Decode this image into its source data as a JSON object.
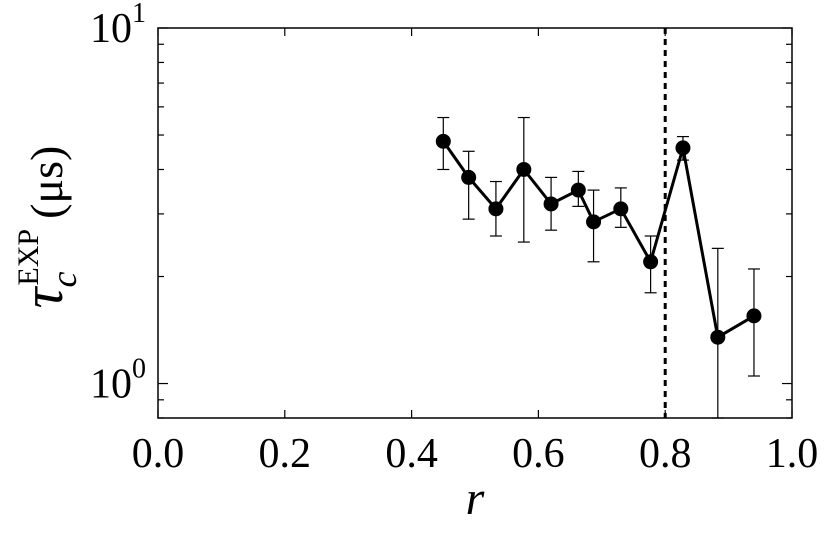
{
  "chart_data": {
    "type": "line",
    "xlabel": "r",
    "ylabel": {
      "symbol": "τ",
      "subscript": "c",
      "superscript": "EXP",
      "unit": "(μs)"
    },
    "xlim": [
      0.0,
      1.0
    ],
    "ylim": [
      0.8,
      10
    ],
    "yscale": "log",
    "grid": false,
    "x_tick_labels": [
      "0.0",
      "0.2",
      "0.4",
      "0.6",
      "0.8",
      "1.0"
    ],
    "x_ticks": [
      0.0,
      0.2,
      0.4,
      0.6,
      0.8,
      1.0
    ],
    "y_tick_labels": [
      {
        "value": 1,
        "base": "10",
        "exp": "0"
      },
      {
        "value": 10,
        "base": "10",
        "exp": "1"
      }
    ],
    "series": [
      {
        "x": [
          0.45,
          0.49,
          0.533,
          0.577,
          0.62,
          0.663,
          0.687,
          0.73,
          0.777,
          0.828,
          0.883,
          0.94
        ],
        "y": [
          4.8,
          3.8,
          3.1,
          4.0,
          3.2,
          3.5,
          2.85,
          3.1,
          2.2,
          4.6,
          1.35,
          1.55
        ],
        "err_low": [
          4.0,
          2.9,
          2.6,
          2.5,
          2.7,
          3.15,
          2.2,
          2.75,
          1.8,
          4.25,
          0.8,
          1.05
        ],
        "err_high": [
          5.6,
          4.5,
          3.7,
          5.6,
          3.8,
          3.95,
          3.5,
          3.55,
          2.6,
          4.95,
          2.4,
          2.1
        ]
      }
    ],
    "vertical_line": {
      "x": 0.8,
      "style": "dashed"
    },
    "color": "#000000"
  }
}
